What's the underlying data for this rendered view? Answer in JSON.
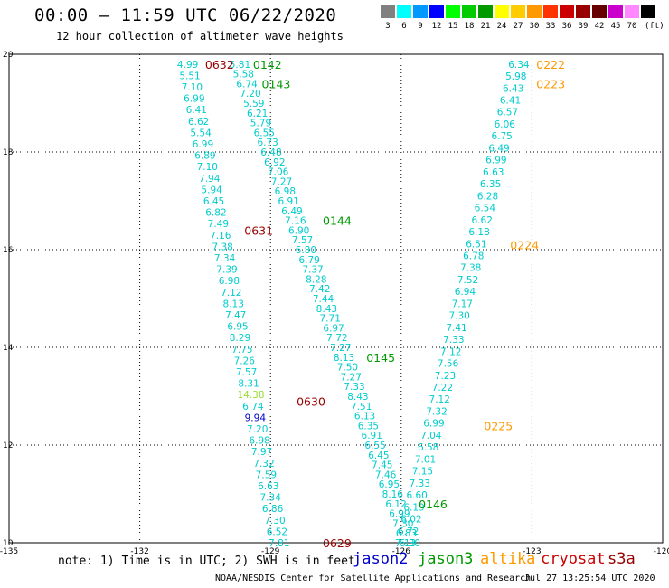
{
  "header": {
    "title": "00:00 – 11:59 UTC 06/22/2020",
    "subtitle": "12 hour collection of altimeter wave heights"
  },
  "colorbar": {
    "unit": "(ft)",
    "bins": [
      {
        "label": "3",
        "color": "#808080"
      },
      {
        "label": "6",
        "color": "#00ffff"
      },
      {
        "label": "9",
        "color": "#0099ff"
      },
      {
        "label": "12",
        "color": "#0000ff"
      },
      {
        "label": "15",
        "color": "#00ff00"
      },
      {
        "label": "18",
        "color": "#00cc00"
      },
      {
        "label": "21",
        "color": "#009900"
      },
      {
        "label": "24",
        "color": "#ffff00"
      },
      {
        "label": "27",
        "color": "#ffcc00"
      },
      {
        "label": "30",
        "color": "#ff9900"
      },
      {
        "label": "33",
        "color": "#ff3300"
      },
      {
        "label": "36",
        "color": "#cc0000"
      },
      {
        "label": "39",
        "color": "#990000"
      },
      {
        "label": "42",
        "color": "#660000"
      },
      {
        "label": "45",
        "color": "#cc00cc"
      },
      {
        "label": "70",
        "color": "#ff88ff"
      },
      {
        "label": "",
        "color": "#000000"
      }
    ]
  },
  "map": {
    "x_ticks": [
      "-135",
      "-132",
      "-129",
      "-126",
      "-123",
      "-120"
    ],
    "y_ticks": [
      "20",
      "18",
      "16",
      "14",
      "12",
      "10"
    ],
    "lon_range": [
      -135,
      -120
    ],
    "lat_range": [
      10,
      20
    ],
    "passes": [
      {
        "label": "0632",
        "color": "#990000",
        "lon": -130.5,
        "lat": 19.8
      },
      {
        "label": "0142",
        "color": "#009900",
        "lon": -129.4,
        "lat": 19.8
      },
      {
        "label": "0143",
        "color": "#009900",
        "lon": -129.2,
        "lat": 19.4
      },
      {
        "label": "0144",
        "color": "#009900",
        "lon": -127.8,
        "lat": 16.6
      },
      {
        "label": "0631",
        "color": "#990000",
        "lon": -129.6,
        "lat": 16.4
      },
      {
        "label": "0145",
        "color": "#009900",
        "lon": -126.8,
        "lat": 13.8
      },
      {
        "label": "0630",
        "color": "#990000",
        "lon": -128.4,
        "lat": 12.9
      },
      {
        "label": "0629",
        "color": "#990000",
        "lon": -127.8,
        "lat": 10.0
      },
      {
        "label": "0146",
        "color": "#009900",
        "lon": -125.6,
        "lat": 10.8
      },
      {
        "label": "0222",
        "color": "#ff9900",
        "lon": -122.9,
        "lat": 19.8
      },
      {
        "label": "0223",
        "color": "#ff9900",
        "lon": -122.9,
        "lat": 19.4
      },
      {
        "label": "0224",
        "color": "#ff9900",
        "lon": -123.5,
        "lat": 16.1
      },
      {
        "label": "0225",
        "color": "#ff9900",
        "lon": -124.1,
        "lat": 12.4
      }
    ],
    "tracks": [
      {
        "name": "track-cryosat-0632",
        "color": "#00cccc",
        "lon_start": -130.9,
        "lat_start": 19.8,
        "lon_end": -128.8,
        "lat_end": 10.0,
        "values": [
          "4.99",
          "5.51",
          "7.10",
          "6.99",
          "6.41",
          "6.62",
          "5.54",
          "6.99",
          "6.89",
          "7.10",
          "7.94",
          "5.94",
          "6.45",
          "6.82",
          "7.49",
          "7.16",
          "7.38",
          "7.34",
          "7.39",
          "6.98",
          "7.12",
          "8.13",
          "7.47",
          "6.95",
          "8.29",
          "7.75",
          "7.26",
          "7.57",
          "8.31",
          "14.38",
          "6.74",
          "9.94",
          "7.20",
          "6.98",
          "7.97",
          "7.32",
          "7.59",
          "6.63",
          "7.34",
          "6.86",
          "7.30",
          "6.52",
          "7.81"
        ],
        "special": {
          "29": "#99dd33",
          "31": "#0000cc"
        }
      },
      {
        "name": "track-jason3-0142",
        "color": "#00cccc",
        "lon_start": -129.7,
        "lat_start": 19.8,
        "lon_end": -125.8,
        "lat_end": 10.0,
        "values": [
          "5.81",
          "5.58",
          "6.74",
          "7.20",
          "5.59",
          "6.21",
          "5.79",
          "6.55",
          "6.73",
          "6.48",
          "6.92",
          "7.06",
          "7.27",
          "6.98",
          "6.91",
          "6.49",
          "7.16",
          "6.90",
          "7.57",
          "6.80",
          "6.79",
          "7.37",
          "8.28",
          "7.42",
          "7.44",
          "8.43",
          "7.71",
          "6.97",
          "7.72",
          "7.27",
          "8.13",
          "7.50",
          "7.27",
          "7.33",
          "8.43",
          "7.51",
          "6.13",
          "6.35",
          "6.91",
          "6.55",
          "6.45",
          "7.45",
          "7.46",
          "6.95",
          "8.16",
          "6.12",
          "6.99",
          "7.30",
          "6.83",
          "6.30"
        ],
        "special": {}
      },
      {
        "name": "track-altika-0222",
        "color": "#00cccc",
        "lon_start": -123.3,
        "lat_start": 19.8,
        "lon_end": -125.9,
        "lat_end": 10.0,
        "values": [
          "6.34",
          "5.98",
          "6.43",
          "6.41",
          "6.57",
          "6.06",
          "6.75",
          "6.49",
          "6.99",
          "6.63",
          "6.35",
          "6.28",
          "6.54",
          "6.62",
          "6.18",
          "6.51",
          "6.78",
          "7.38",
          "7.52",
          "6.94",
          "7.17",
          "7.30",
          "7.41",
          "7.33",
          "7.12",
          "7.56",
          "7.23",
          "7.22",
          "7.12",
          "7.32",
          "6.99",
          "7.04",
          "6.58",
          "7.01",
          "7.15",
          "7.33",
          "6.60",
          "6.19",
          "6.02",
          "6.72",
          "7.13"
        ],
        "special": {}
      }
    ]
  },
  "footer": {
    "note": "note:  1) Time is in UTC; 2) SWH is in feet",
    "legend": [
      {
        "label": "jason2",
        "color": "#0000cc"
      },
      {
        "label": "jason3",
        "color": "#009900"
      },
      {
        "label": "altika",
        "color": "#ff9900"
      },
      {
        "label": "cryosat",
        "color": "#cc0000"
      },
      {
        "label": "s3a",
        "color": "#990000"
      }
    ],
    "credit": "NOAA/NESDIS Center for Satellite Applications and Research",
    "timestamp": "Jul 27 13:25:54 UTC 2020"
  }
}
